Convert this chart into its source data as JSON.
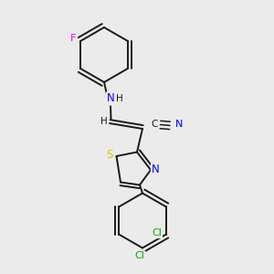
{
  "background_color": "#ebebeb",
  "bond_color": "#1a1a1a",
  "figsize": [
    3.0,
    3.0
  ],
  "dpi": 100,
  "colors": {
    "N": "#0000ff",
    "S": "#cccc00",
    "F": "#ff00ff",
    "Cl": "#00aa00",
    "C": "#1a1a1a",
    "H": "#1a1a1a"
  },
  "lw": 1.4
}
